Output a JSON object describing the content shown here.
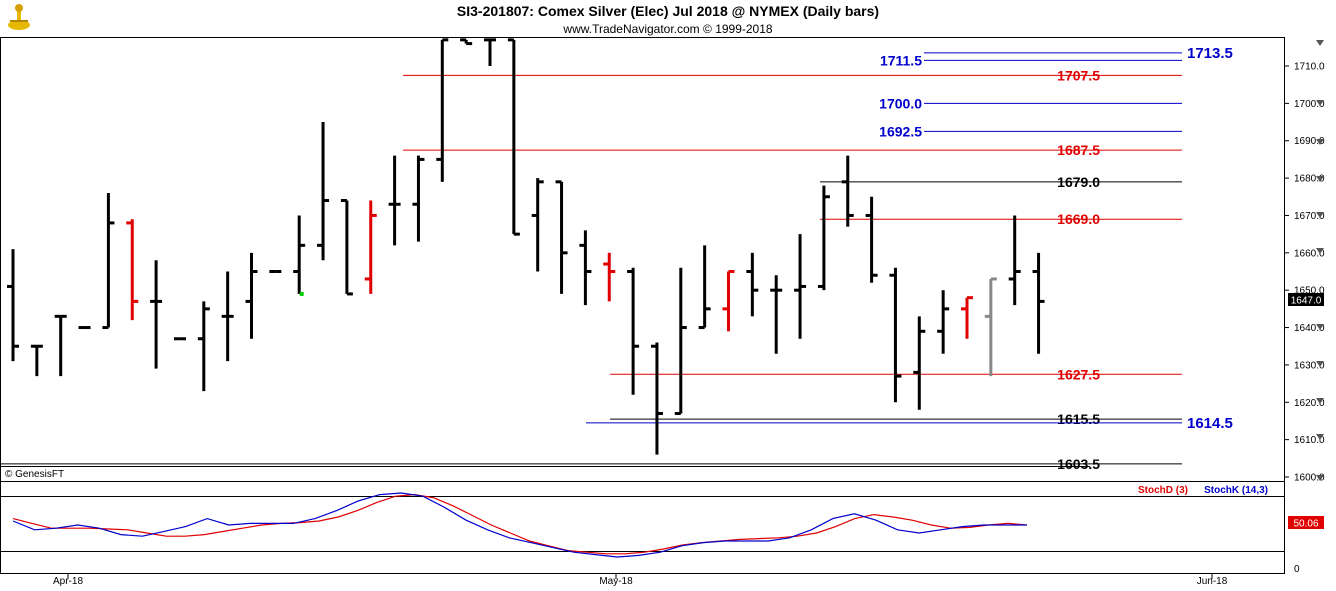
{
  "header": {
    "title": "SI3-201807:  Comex Silver (Elec) Jul 2018 @ NYMEX  (Daily bars)",
    "subtitle": "www.TradeNavigator.com © 1999-2018"
  },
  "price_panel": {
    "copyright": "© GenesisFT",
    "last_price_tag": "1647.0",
    "colors": {
      "black": "#000000",
      "red": "#e00000",
      "gray": "#888888",
      "blue": "#0000cc",
      "green": "#00cc00"
    }
  },
  "stoch_panel": {
    "label_d": "StochD (3)",
    "label_k": "StochK (14,3)",
    "value_tag": "50.06",
    "colors": {
      "d": "#e00000",
      "k": "#0000cc"
    }
  },
  "chart_data": [
    {
      "type": "ohlc",
      "y_ticks": [
        "1710.0",
        "1700.0",
        "1690.0",
        "1680.0",
        "1670.0",
        "1660.0",
        "1650.0",
        "1640.0",
        "1630.0",
        "1620.0",
        "1610.0",
        "1600.0"
      ],
      "x_ticks": [
        "Apr-18",
        "May-18",
        "Jun-18"
      ],
      "ylim": [
        1597,
        1717
      ],
      "bars": [
        {
          "o": 1651,
          "h": 1661,
          "l": 1631,
          "c": 1635,
          "color": "black"
        },
        {
          "o": 1635,
          "h": 1635,
          "l": 1627,
          "c": 1635,
          "color": "black"
        },
        {
          "o": 1643,
          "h": 1643,
          "l": 1627,
          "c": 1643,
          "color": "black"
        },
        {
          "o": 1640,
          "h": 1640,
          "l": 1640,
          "c": 1640,
          "color": "black"
        },
        {
          "o": 1640,
          "h": 1676,
          "l": 1640,
          "c": 1668,
          "color": "black"
        },
        {
          "o": 1668,
          "h": 1669,
          "l": 1642,
          "c": 1647,
          "color": "red"
        },
        {
          "o": 1647,
          "h": 1658,
          "l": 1629,
          "c": 1647,
          "color": "black"
        },
        {
          "o": 1637,
          "h": 1637,
          "l": 1637,
          "c": 1637,
          "color": "black"
        },
        {
          "o": 1637,
          "h": 1647,
          "l": 1623,
          "c": 1645,
          "color": "black"
        },
        {
          "o": 1643,
          "h": 1655,
          "l": 1631,
          "c": 1643,
          "color": "black"
        },
        {
          "o": 1647,
          "h": 1660,
          "l": 1637,
          "c": 1655,
          "color": "black"
        },
        {
          "o": 1655,
          "h": 1655,
          "l": 1655,
          "c": 1655,
          "color": "black"
        },
        {
          "o": 1655,
          "h": 1670,
          "l": 1649,
          "c": 1662,
          "color": "black"
        },
        {
          "o": 1662,
          "h": 1695,
          "l": 1658,
          "c": 1674,
          "color": "black"
        },
        {
          "o": 1674,
          "h": 1674,
          "l": 1649,
          "c": 1649,
          "color": "black"
        },
        {
          "o": 1653,
          "h": 1674,
          "l": 1649,
          "c": 1670,
          "color": "red"
        },
        {
          "o": 1673,
          "h": 1686,
          "l": 1662,
          "c": 1673,
          "color": "black"
        },
        {
          "o": 1673,
          "h": 1686,
          "l": 1663,
          "c": 1685,
          "color": "black"
        },
        {
          "o": 1685,
          "h": 1717,
          "l": 1679,
          "c": 1717,
          "color": "black"
        },
        {
          "o": 1717,
          "h": 1717,
          "l": 1716,
          "c": 1716,
          "color": "black"
        },
        {
          "o": 1717,
          "h": 1717,
          "l": 1710,
          "c": 1717,
          "color": "black"
        },
        {
          "o": 1717,
          "h": 1717,
          "l": 1665,
          "c": 1665,
          "color": "black"
        },
        {
          "o": 1670,
          "h": 1680,
          "l": 1655,
          "c": 1679,
          "color": "black"
        },
        {
          "o": 1679,
          "h": 1679,
          "l": 1649,
          "c": 1660,
          "color": "black"
        },
        {
          "o": 1662,
          "h": 1666,
          "l": 1646,
          "c": 1655,
          "color": "black"
        },
        {
          "o": 1657,
          "h": 1660,
          "l": 1647,
          "c": 1655,
          "color": "red"
        },
        {
          "o": 1655,
          "h": 1656,
          "l": 1622,
          "c": 1635,
          "color": "black"
        },
        {
          "o": 1635,
          "h": 1636,
          "l": 1606,
          "c": 1617,
          "color": "black"
        },
        {
          "o": 1617,
          "h": 1656,
          "l": 1617,
          "c": 1640,
          "color": "black"
        },
        {
          "o": 1640,
          "h": 1662,
          "l": 1640,
          "c": 1645,
          "color": "black"
        },
        {
          "o": 1645,
          "h": 1655,
          "l": 1639,
          "c": 1655,
          "color": "red"
        },
        {
          "o": 1655,
          "h": 1660,
          "l": 1643,
          "c": 1650,
          "color": "black"
        },
        {
          "o": 1650,
          "h": 1654,
          "l": 1633,
          "c": 1650,
          "color": "black"
        },
        {
          "o": 1650,
          "h": 1665,
          "l": 1637,
          "c": 1651,
          "color": "black"
        },
        {
          "o": 1651,
          "h": 1678,
          "l": 1650,
          "c": 1675,
          "color": "black"
        },
        {
          "o": 1679,
          "h": 1686,
          "l": 1667,
          "c": 1670,
          "color": "black"
        },
        {
          "o": 1670,
          "h": 1675,
          "l": 1652,
          "c": 1654,
          "color": "black"
        },
        {
          "o": 1654,
          "h": 1656,
          "l": 1620,
          "c": 1627,
          "color": "black"
        },
        {
          "o": 1628,
          "h": 1643,
          "l": 1618,
          "c": 1639,
          "color": "black"
        },
        {
          "o": 1639,
          "h": 1650,
          "l": 1633,
          "c": 1645,
          "color": "black"
        },
        {
          "o": 1645,
          "h": 1648,
          "l": 1637,
          "c": 1648,
          "color": "red"
        },
        {
          "o": 1643,
          "h": 1653,
          "l": 1627,
          "c": 1653,
          "color": "gray"
        },
        {
          "o": 1653,
          "h": 1670,
          "l": 1646,
          "c": 1655,
          "color": "black"
        },
        {
          "o": 1655,
          "h": 1660,
          "l": 1633,
          "c": 1647,
          "color": "black"
        }
      ],
      "levels": [
        {
          "value": 1713.5,
          "label": "1713.5",
          "color": "blue",
          "big": true
        },
        {
          "value": 1711.5,
          "label": "1711.5",
          "color": "blue",
          "big": false
        },
        {
          "value": 1707.5,
          "label": "1707.5",
          "color": "red",
          "big": false
        },
        {
          "value": 1700.0,
          "label": "1700.0",
          "color": "blue",
          "big": false
        },
        {
          "value": 1692.5,
          "label": "1692.5",
          "color": "blue",
          "big": false
        },
        {
          "value": 1687.5,
          "label": "1687.5",
          "color": "red",
          "big": false
        },
        {
          "value": 1679.0,
          "label": "1679.0",
          "color": "black",
          "big": false
        },
        {
          "value": 1669.0,
          "label": "1669.0",
          "color": "red",
          "big": false
        },
        {
          "value": 1627.5,
          "label": "1627.5",
          "color": "red",
          "big": false
        },
        {
          "value": 1615.5,
          "label": "1615.5",
          "color": "black",
          "big": false
        },
        {
          "value": 1614.5,
          "label": "1614.5",
          "color": "blue",
          "big": true
        },
        {
          "value": 1603.5,
          "label": "1603.5",
          "color": "black",
          "big": false
        }
      ]
    },
    {
      "type": "line",
      "y_ticks": [
        "50.06",
        "0"
      ],
      "ylim": [
        0,
        100
      ],
      "series": [
        {
          "name": "StochD (3)",
          "values": [
            58,
            52,
            46,
            46,
            46,
            45,
            44,
            40,
            36,
            36,
            38,
            42,
            46,
            50,
            52,
            53,
            55,
            60,
            68,
            78,
            86,
            88,
            84,
            74,
            62,
            50,
            40,
            30,
            24,
            18,
            16,
            14,
            14,
            16,
            20,
            25,
            28,
            30,
            32,
            33,
            34,
            36,
            40,
            48,
            58,
            63,
            60,
            56,
            50,
            46,
            47,
            50,
            52,
            50
          ]
        },
        {
          "name": "StochK (14,3)",
          "values": [
            55,
            44,
            46,
            50,
            46,
            38,
            36,
            42,
            48,
            58,
            50,
            52,
            52,
            52,
            58,
            68,
            80,
            88,
            90,
            86,
            72,
            56,
            44,
            34,
            28,
            22,
            16,
            13,
            10,
            12,
            16,
            24,
            28,
            30,
            30,
            30,
            34,
            44,
            58,
            64,
            56,
            44,
            40,
            44,
            48,
            50,
            50,
            50
          ]
        }
      ]
    }
  ]
}
